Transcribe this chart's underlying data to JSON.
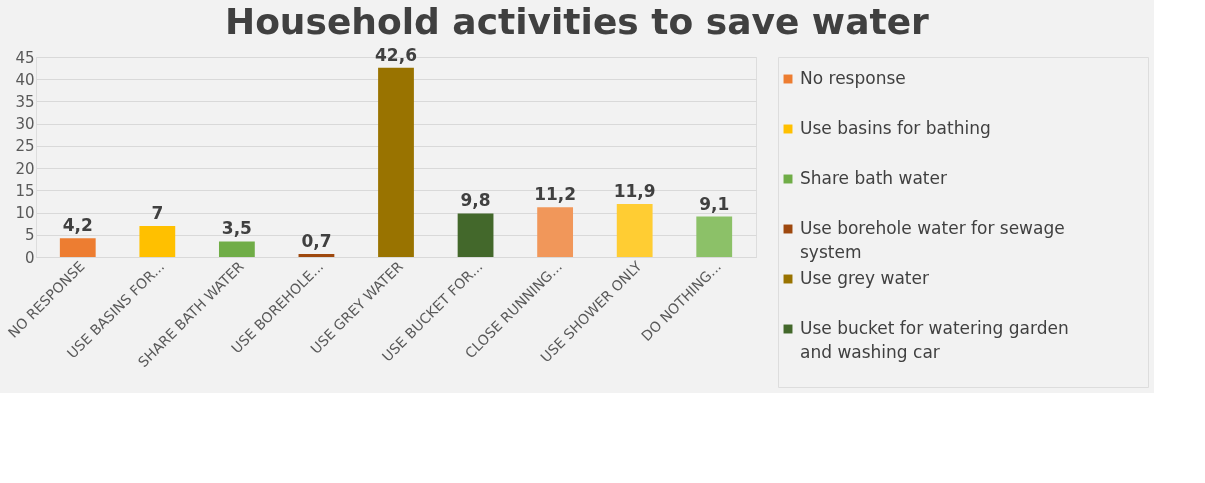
{
  "chart_data": {
    "type": "bar",
    "title": "Household activities to save water",
    "categories": [
      "NO RESPONSE",
      "USE BASINS FOR...",
      "SHARE BATH WATER",
      "USE BOREHOLE...",
      "USE GREY WATER",
      "USE BUCKET FOR...",
      "CLOSE RUNNING...",
      "USE SHOWER ONLY",
      "DO NOTHING..."
    ],
    "series": [
      {
        "name": "No response",
        "color": "#ed7d31",
        "values": [
          4.2,
          null,
          null,
          null,
          null,
          null,
          null,
          null,
          null
        ],
        "value_labels": [
          "4,2",
          null,
          null,
          null,
          null,
          null,
          null,
          null,
          null
        ]
      },
      {
        "name": "Use basins for bathing",
        "color": "#ffc000",
        "values": [
          null,
          7,
          null,
          null,
          null,
          null,
          null,
          null,
          null
        ],
        "value_labels": [
          null,
          "7",
          null,
          null,
          null,
          null,
          null,
          null,
          null
        ]
      },
      {
        "name": "Share bath water",
        "color": "#70ad47",
        "values": [
          null,
          null,
          3.5,
          null,
          null,
          null,
          null,
          null,
          null
        ],
        "value_labels": [
          null,
          null,
          "3,5",
          null,
          null,
          null,
          null,
          null,
          null
        ]
      },
      {
        "name": "Use borehole water for sewage system",
        "color": "#9e480e",
        "values": [
          null,
          null,
          null,
          0.7,
          null,
          null,
          null,
          null,
          null
        ],
        "value_labels": [
          null,
          null,
          null,
          "0,7",
          null,
          null,
          null,
          null,
          null
        ]
      },
      {
        "name": "Use grey water",
        "color": "#997300",
        "values": [
          null,
          null,
          null,
          null,
          42.6,
          null,
          null,
          null,
          null
        ],
        "value_labels": [
          null,
          null,
          null,
          null,
          "42,6",
          null,
          null,
          null,
          null
        ]
      },
      {
        "name": "Use bucket for watering garden and washing car",
        "color": "#43682b",
        "values": [
          null,
          null,
          null,
          null,
          null,
          9.8,
          null,
          null,
          null
        ],
        "value_labels": [
          null,
          null,
          null,
          null,
          null,
          "9,8",
          null,
          null,
          null
        ]
      },
      {
        "color": "#f1975a",
        "values": [
          null,
          null,
          null,
          null,
          null,
          null,
          11.2,
          null,
          null
        ],
        "value_labels": [
          null,
          null,
          null,
          null,
          null,
          null,
          "11,2",
          null,
          null
        ]
      },
      {
        "color": "#ffcd33",
        "values": [
          null,
          null,
          null,
          null,
          null,
          null,
          null,
          11.9,
          null
        ],
        "value_labels": [
          null,
          null,
          null,
          null,
          null,
          null,
          null,
          "11,9",
          null
        ]
      },
      {
        "color": "#8cc168",
        "values": [
          null,
          null,
          null,
          null,
          null,
          null,
          null,
          null,
          9.1
        ],
        "value_labels": [
          null,
          null,
          null,
          null,
          null,
          null,
          null,
          null,
          "9,1"
        ]
      }
    ],
    "ylim": [
      0,
      45
    ],
    "yticks": [
      0,
      5,
      10,
      15,
      20,
      25,
      30,
      35,
      40,
      45
    ],
    "grid": "y",
    "legend": "right"
  }
}
